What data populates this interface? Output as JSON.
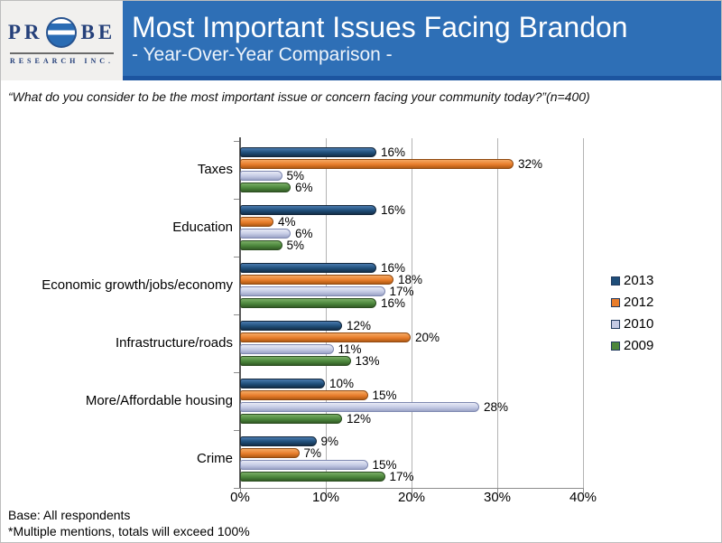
{
  "logo": {
    "letters_left": "PR",
    "letters_right": "BE",
    "subtext": "RESEARCH INC."
  },
  "header": {
    "title": "Most Important Issues Facing Brandon",
    "subtitle": "- Year-Over-Year Comparison -",
    "bg_color": "#2e6fb6",
    "accent_color": "#1c55a0"
  },
  "question": "“What do you consider to be the most important issue or concern facing your community today?”(n=400)",
  "footer": {
    "line1": "Base: All respondents",
    "line2": "*Multiple mentions, totals will exceed 100%"
  },
  "chart_data": {
    "type": "bar",
    "orientation": "horizontal",
    "title": "Most Important Issues Facing Brandon - Year-Over-Year Comparison",
    "categories": [
      "Taxes",
      "Education",
      "Economic growth/jobs/economy",
      "Infrastructure/roads",
      "More/Affordable housing",
      "Crime"
    ],
    "series": [
      {
        "name": "2013",
        "color": "#1F4E79",
        "color_light": "#4a7bae",
        "color_dark": "#142f49",
        "border": "#12263b",
        "values": [
          16,
          16,
          16,
          12,
          10,
          9
        ]
      },
      {
        "name": "2012",
        "color": "#E87D2B",
        "color_light": "#f5a963",
        "color_dark": "#b05a14",
        "border": "#8f4a12",
        "values": [
          32,
          4,
          18,
          20,
          15,
          7
        ]
      },
      {
        "name": "2010",
        "color": "#C4CAE4",
        "color_light": "#e7eaf6",
        "color_dark": "#9ba3c6",
        "border": "#7e88b0",
        "values": [
          5,
          6,
          17,
          11,
          28,
          15
        ]
      },
      {
        "name": "2009",
        "color": "#4C873C",
        "color_light": "#7aae66",
        "color_dark": "#335b26",
        "border": "#2b4d20",
        "values": [
          6,
          5,
          16,
          13,
          12,
          17
        ]
      }
    ],
    "xlim": [
      0,
      40
    ],
    "x_ticks": [
      "0%",
      "10%",
      "20%",
      "30%",
      "40%"
    ],
    "data_label_format": "{v}%",
    "grid": true,
    "legend_position": "right"
  }
}
